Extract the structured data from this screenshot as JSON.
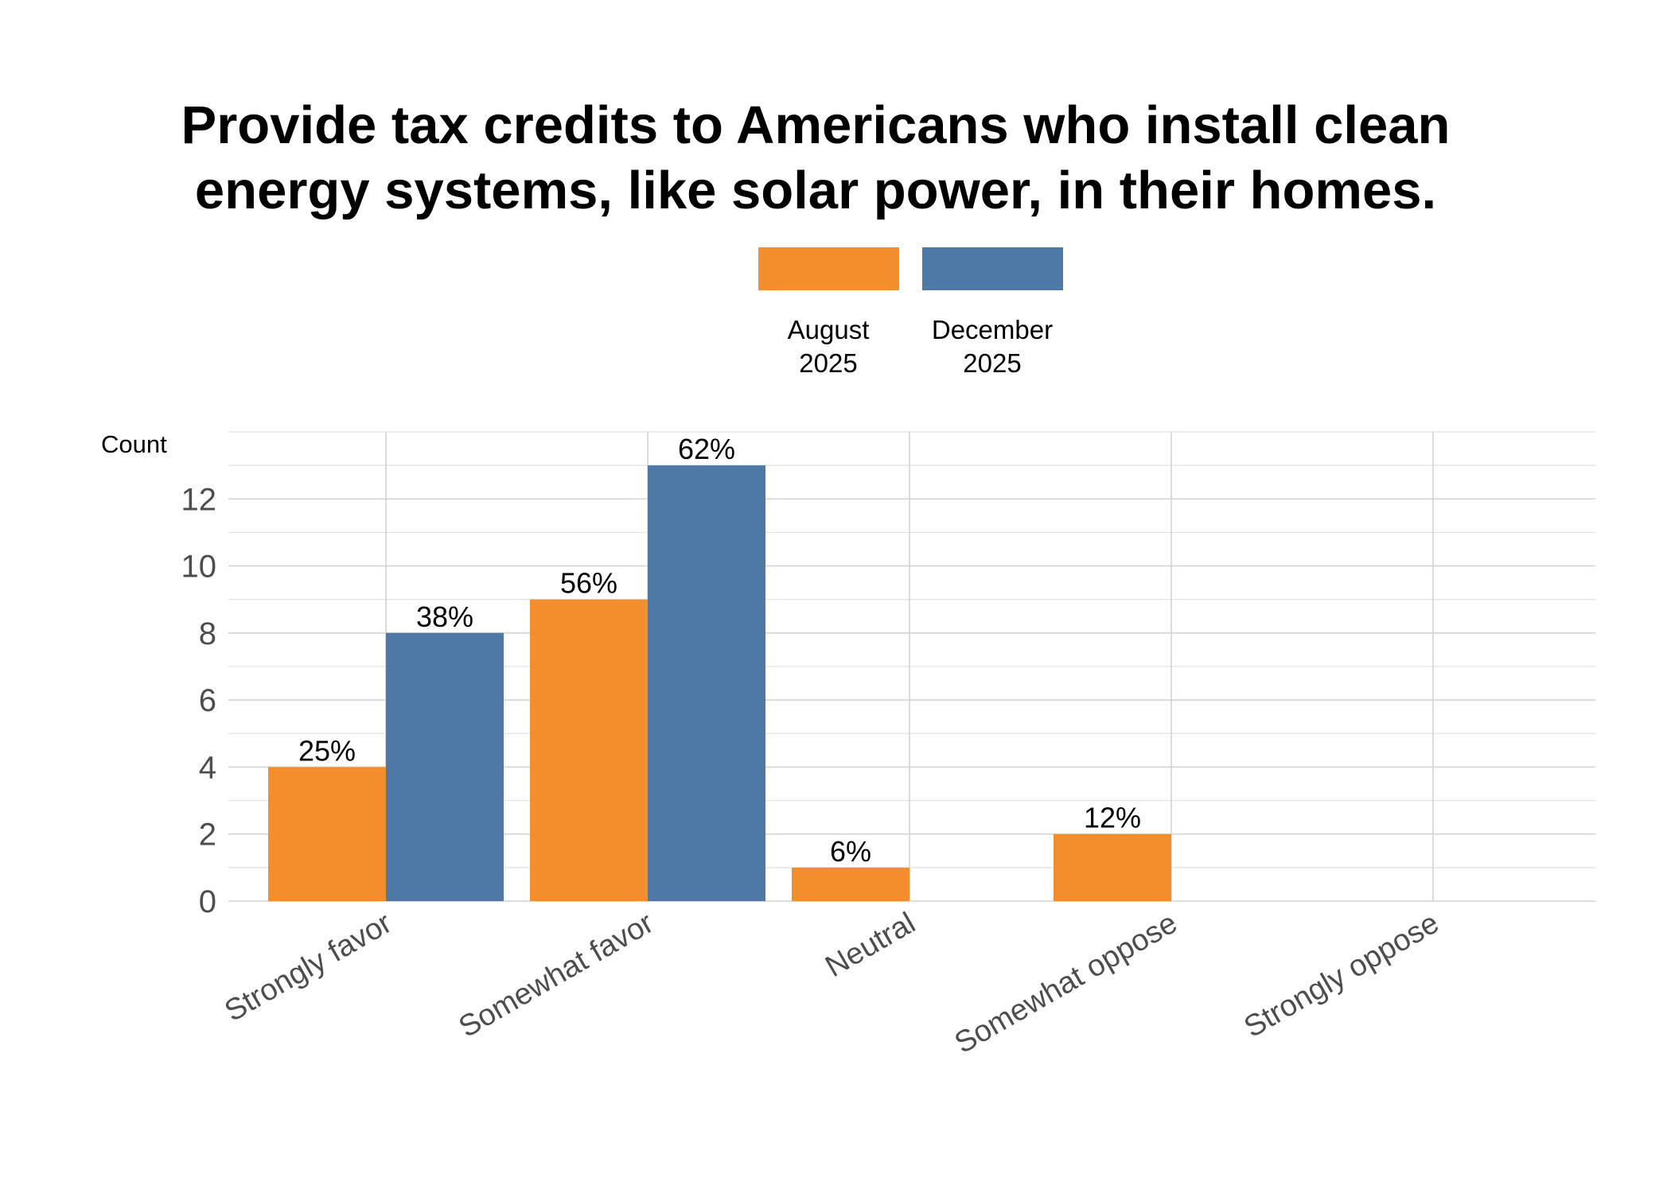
{
  "chart_data": {
    "type": "bar",
    "title_lines": [
      "Provide tax credits to Americans who install clean",
      "energy systems, like solar power, in their homes."
    ],
    "ylabel": "Count",
    "xlabel": "",
    "ylim": [
      0,
      14
    ],
    "yticks": [
      0,
      2,
      4,
      6,
      8,
      10,
      12
    ],
    "grid": true,
    "legend_position": "top",
    "categories": [
      "Strongly favor",
      "Somewhat favor",
      "Neutral",
      "Somewhat oppose",
      "Strongly oppose"
    ],
    "series": [
      {
        "name": "August 2025",
        "name_lines": [
          "August",
          "2025"
        ],
        "color": "#F28E2B",
        "values": [
          4,
          9,
          1,
          2,
          0
        ],
        "labels": [
          "25%",
          "56%",
          "6%",
          "12%",
          ""
        ]
      },
      {
        "name": "December 2025",
        "name_lines": [
          "December",
          "2025"
        ],
        "color": "#4E79A7",
        "values": [
          8,
          13,
          0,
          0,
          0
        ],
        "labels": [
          "38%",
          "62%",
          "",
          "",
          ""
        ]
      }
    ]
  }
}
